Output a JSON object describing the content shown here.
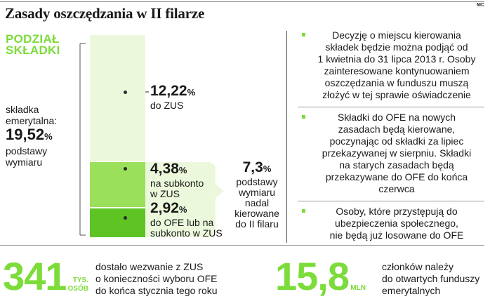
{
  "title": "Zasady oszczędzania w II filarze",
  "credit": "MC",
  "section_label": [
    "PODZIAŁ",
    "SKŁADKI"
  ],
  "contribution": {
    "label": [
      "składka",
      "emerytalna:"
    ],
    "value": "19,52",
    "pct": "%",
    "sub": [
      "podstawy",
      "wymiaru"
    ]
  },
  "split": [
    {
      "value": "12,22",
      "pct": "%",
      "lines": [
        "do ZUS"
      ]
    },
    {
      "value": "4,38",
      "pct": "%",
      "lines": [
        "na subkonto",
        "w ZUS"
      ]
    },
    {
      "value": "2,92",
      "pct": "%",
      "lines": [
        "do OFE lub na",
        "subkonto w ZUS"
      ]
    }
  ],
  "remaining": {
    "value": "7,3",
    "pct": "%",
    "lines": [
      "podstawy",
      "wymiaru",
      "nadal",
      "kierowane",
      "do II filaru"
    ]
  },
  "colors": {
    "green": "#7cdc3a",
    "light_green": "#ecf8dc",
    "mid_green": "#9be05a",
    "dark_green": "#5dc424"
  },
  "notes": [
    {
      "lines": [
        "Decyzję o miejscu kierowania",
        "składek będzie można podjąć od",
        "1 kwietnia do 31 lipca 2013 r. Osoby",
        "zainteresowane kontynuowaniem",
        "oszczędzania w funduszu muszą",
        "złożyć w tej sprawie oświadczenie"
      ]
    },
    {
      "lines": [
        "Składki do OFE na nowych",
        "zasadach będą kierowane,",
        "poczynając od składki za lipiec",
        "przekazywanej w sierpniu. Składki",
        "na starych zasadach będą",
        "przekazywane do OFE do końca",
        "czerwca"
      ]
    },
    {
      "lines": [
        "Osoby, które przystępują do",
        "ubezpieczenia społecznego,",
        "nie będą już losowane do OFE"
      ]
    }
  ],
  "stats": [
    {
      "value": "341",
      "unit": [
        "TYS.",
        "OSÓB"
      ],
      "lines": [
        "dostało wezwanie z ZUS",
        "o konieczności wyboru OFE",
        "do końca stycznia tego roku"
      ]
    },
    {
      "value": "15,8",
      "unit": [
        "MLN"
      ],
      "lines": [
        "członków należy",
        "do otwartych funduszy",
        "emerytalnych"
      ]
    }
  ]
}
